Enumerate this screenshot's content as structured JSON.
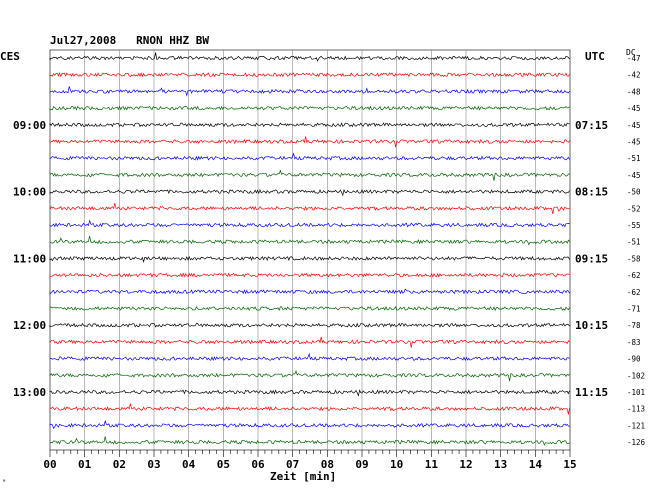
{
  "header": {
    "date": "Jul27,2008",
    "station": "RNON HHZ BW"
  },
  "left_label": "CES",
  "right_label": "UTC",
  "dc_label": "DC",
  "corner_mark": "ᵊ",
  "chart_data": {
    "type": "line",
    "title": "Jul27,2008   RNON HHZ BW",
    "xlabel": "Zeit [min]",
    "ylabel": "",
    "xlim": [
      0,
      15
    ],
    "x_ticks": [
      "00",
      "01",
      "02",
      "03",
      "04",
      "05",
      "06",
      "07",
      "08",
      "09",
      "10",
      "11",
      "12",
      "13",
      "14",
      "15"
    ],
    "grid": true,
    "trace_count": 24,
    "trace_colors": [
      "#000000",
      "#ff0000",
      "#0000ff",
      "#006400"
    ],
    "left_time_labels": [
      "09:00",
      "10:00",
      "11:00",
      "12:00",
      "13:00"
    ],
    "right_time_labels": [
      "07:15",
      "08:15",
      "09:15",
      "10:15",
      "11:15"
    ],
    "time_label_trace_index": [
      4,
      8,
      12,
      16,
      20
    ],
    "dc_offsets": [
      "-47",
      "-42",
      "-48",
      "-45",
      "-45",
      "-45",
      "-51",
      "-45",
      "-50",
      "-52",
      "-55",
      "-51",
      "-58",
      "-62",
      "-62",
      "-71",
      "-78",
      "-83",
      "-90",
      "-102",
      "-101",
      "-113",
      "-121",
      "-126"
    ]
  }
}
